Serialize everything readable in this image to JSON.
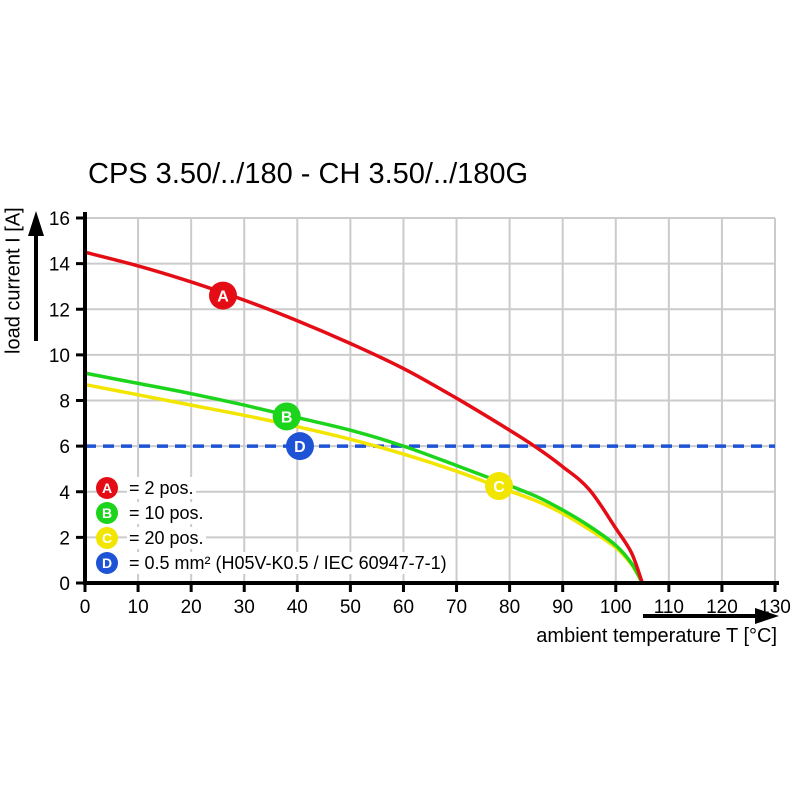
{
  "title": "CPS 3.50/../180 - CH 3.50/../180G",
  "colors": {
    "red": "#e50d15",
    "green": "#1bd41b",
    "yellow": "#f2e500",
    "blue": "#1e53d5",
    "grid": "#cbcbcb",
    "axis": "#000000",
    "background": "#ffffff"
  },
  "y_axis": {
    "label": "load current I [A]"
  },
  "x_axis": {
    "label": "ambient temperature T [°C]"
  },
  "legend": {
    "items": [
      {
        "id": "A",
        "color_key": "red",
        "label": "= 2 pos."
      },
      {
        "id": "B",
        "color_key": "green",
        "label": "= 10 pos."
      },
      {
        "id": "C",
        "color_key": "yellow",
        "label": "= 20 pos."
      },
      {
        "id": "D",
        "color_key": "blue",
        "label": "= 0.5 mm² (H05V-K0.5 / IEC 60947-7-1)"
      }
    ]
  },
  "chart_data": {
    "type": "line",
    "title": "CPS 3.50/../180 - CH 3.50/../180G",
    "xlabel": "ambient temperature T [°C]",
    "ylabel": "load current I [A]",
    "xlim": [
      0,
      130
    ],
    "ylim": [
      0,
      16
    ],
    "x_ticks": [
      0,
      10,
      20,
      30,
      40,
      50,
      60,
      70,
      80,
      90,
      100,
      110,
      120,
      130
    ],
    "y_ticks": [
      0,
      2,
      4,
      6,
      8,
      10,
      12,
      14,
      16
    ],
    "grid": true,
    "series": [
      {
        "name": "A = 2 pos.",
        "color_key": "red",
        "points": [
          [
            0,
            14.5
          ],
          [
            10,
            13.9
          ],
          [
            20,
            13.2
          ],
          [
            30,
            12.4
          ],
          [
            40,
            11.5
          ],
          [
            50,
            10.5
          ],
          [
            60,
            9.4
          ],
          [
            70,
            8.1
          ],
          [
            80,
            6.7
          ],
          [
            85,
            5.95
          ],
          [
            90,
            5.1
          ],
          [
            95,
            4.1
          ],
          [
            100,
            2.4
          ],
          [
            103,
            1.3
          ],
          [
            105,
            0
          ]
        ]
      },
      {
        "name": "B = 10 pos.",
        "color_key": "green",
        "points": [
          [
            0,
            9.2
          ],
          [
            10,
            8.75
          ],
          [
            20,
            8.3
          ],
          [
            30,
            7.8
          ],
          [
            40,
            7.25
          ],
          [
            50,
            6.7
          ],
          [
            60,
            6.0
          ],
          [
            70,
            5.15
          ],
          [
            78,
            4.45
          ],
          [
            85,
            3.8
          ],
          [
            90,
            3.2
          ],
          [
            95,
            2.5
          ],
          [
            100,
            1.65
          ],
          [
            103,
            0.85
          ],
          [
            105,
            0
          ]
        ]
      },
      {
        "name": "C = 20 pos.",
        "color_key": "yellow",
        "points": [
          [
            0,
            8.7
          ],
          [
            10,
            8.25
          ],
          [
            20,
            7.8
          ],
          [
            30,
            7.35
          ],
          [
            40,
            6.85
          ],
          [
            50,
            6.3
          ],
          [
            60,
            5.65
          ],
          [
            70,
            4.9
          ],
          [
            78,
            4.2
          ],
          [
            85,
            3.6
          ],
          [
            90,
            3.05
          ],
          [
            95,
            2.35
          ],
          [
            100,
            1.55
          ],
          [
            103,
            0.8
          ],
          [
            105,
            0
          ]
        ]
      }
    ],
    "reference_line": {
      "name": "D = 0.5 mm² (H05V-K0.5 / IEC 60947-7-1)",
      "color_key": "blue",
      "y": 6,
      "style": "dashed"
    },
    "markers": [
      {
        "label": "A",
        "color_key": "red",
        "x": 26,
        "y": 12.6
      },
      {
        "label": "B",
        "color_key": "green",
        "x": 38,
        "y": 7.3
      },
      {
        "label": "C",
        "color_key": "yellow",
        "x": 78,
        "y": 4.25
      },
      {
        "label": "D",
        "color_key": "blue",
        "x": 40.5,
        "y": 6
      }
    ]
  }
}
